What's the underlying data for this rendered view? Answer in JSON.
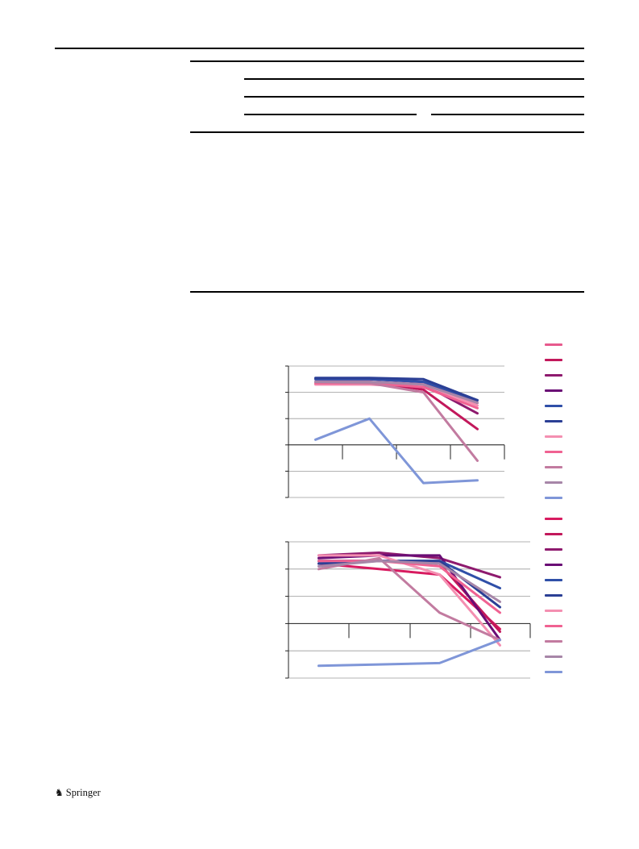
{
  "footer": {
    "publisher": "Springer",
    "logo_icon": "springer-horse-icon"
  },
  "chart_data": [
    {
      "type": "line",
      "title": "",
      "xlabel": "",
      "ylabel": "",
      "x": [
        0,
        1,
        2,
        3
      ],
      "xlim": [
        -0.5,
        3.5
      ],
      "ylim": [
        -2,
        3
      ],
      "grid": true,
      "colors": [
        "#e75a8d",
        "#c2185b",
        "#8e1a6e",
        "#6a0d75",
        "#2f4fa8",
        "#2b3f95",
        "#f48fb1",
        "#f06292",
        "#c27ba0",
        "#a786a8",
        "#7f96d8"
      ],
      "series": [
        {
          "values": [
            2.3,
            2.3,
            2.2,
            1.6
          ]
        },
        {
          "values": [
            2.4,
            2.4,
            2.1,
            0.6
          ]
        },
        {
          "values": [
            2.4,
            2.4,
            2.3,
            1.2
          ]
        },
        {
          "values": [
            2.5,
            2.5,
            2.4,
            1.6
          ]
        },
        {
          "values": [
            2.5,
            2.5,
            2.4,
            1.7
          ]
        },
        {
          "values": [
            2.55,
            2.55,
            2.5,
            1.7
          ]
        },
        {
          "values": [
            2.3,
            2.3,
            2.3,
            1.5
          ]
        },
        {
          "values": [
            2.35,
            2.35,
            2.2,
            1.4
          ]
        },
        {
          "values": [
            2.4,
            2.35,
            2.0,
            -0.6
          ]
        },
        {
          "values": [
            2.4,
            2.4,
            2.3,
            1.6
          ]
        },
        {
          "values": [
            0.2,
            1.0,
            -1.45,
            -1.35
          ]
        }
      ]
    },
    {
      "type": "line",
      "title": "",
      "xlabel": "",
      "ylabel": "",
      "x": [
        0,
        1,
        2,
        3
      ],
      "xlim": [
        -0.5,
        3.5
      ],
      "ylim": [
        -2,
        3
      ],
      "grid": true,
      "colors": [
        "#d81b60",
        "#c2185b",
        "#8e1a6e",
        "#6a0d75",
        "#2f4fa8",
        "#2b3f95",
        "#f48fb1",
        "#f06292",
        "#c27ba0",
        "#a786a8",
        "#7f96d8"
      ],
      "series": [
        {
          "values": [
            2.2,
            2.0,
            1.8,
            -0.2
          ]
        },
        {
          "values": [
            2.3,
            2.3,
            2.2,
            -0.3
          ]
        },
        {
          "values": [
            2.5,
            2.6,
            2.4,
            1.7
          ]
        },
        {
          "values": [
            2.4,
            2.5,
            2.5,
            -0.6
          ]
        },
        {
          "values": [
            2.3,
            2.3,
            2.3,
            1.3
          ]
        },
        {
          "values": [
            2.2,
            2.3,
            2.3,
            0.6
          ]
        },
        {
          "values": [
            2.5,
            2.5,
            1.8,
            -0.8
          ]
        },
        {
          "values": [
            2.3,
            2.3,
            2.1,
            0.4
          ]
        },
        {
          "values": [
            2.0,
            2.4,
            0.4,
            -0.6
          ]
        },
        {
          "values": [
            2.1,
            2.3,
            2.2,
            0.8
          ]
        },
        {
          "values": [
            -1.55,
            -1.5,
            -1.45,
            -0.6
          ]
        }
      ]
    }
  ]
}
